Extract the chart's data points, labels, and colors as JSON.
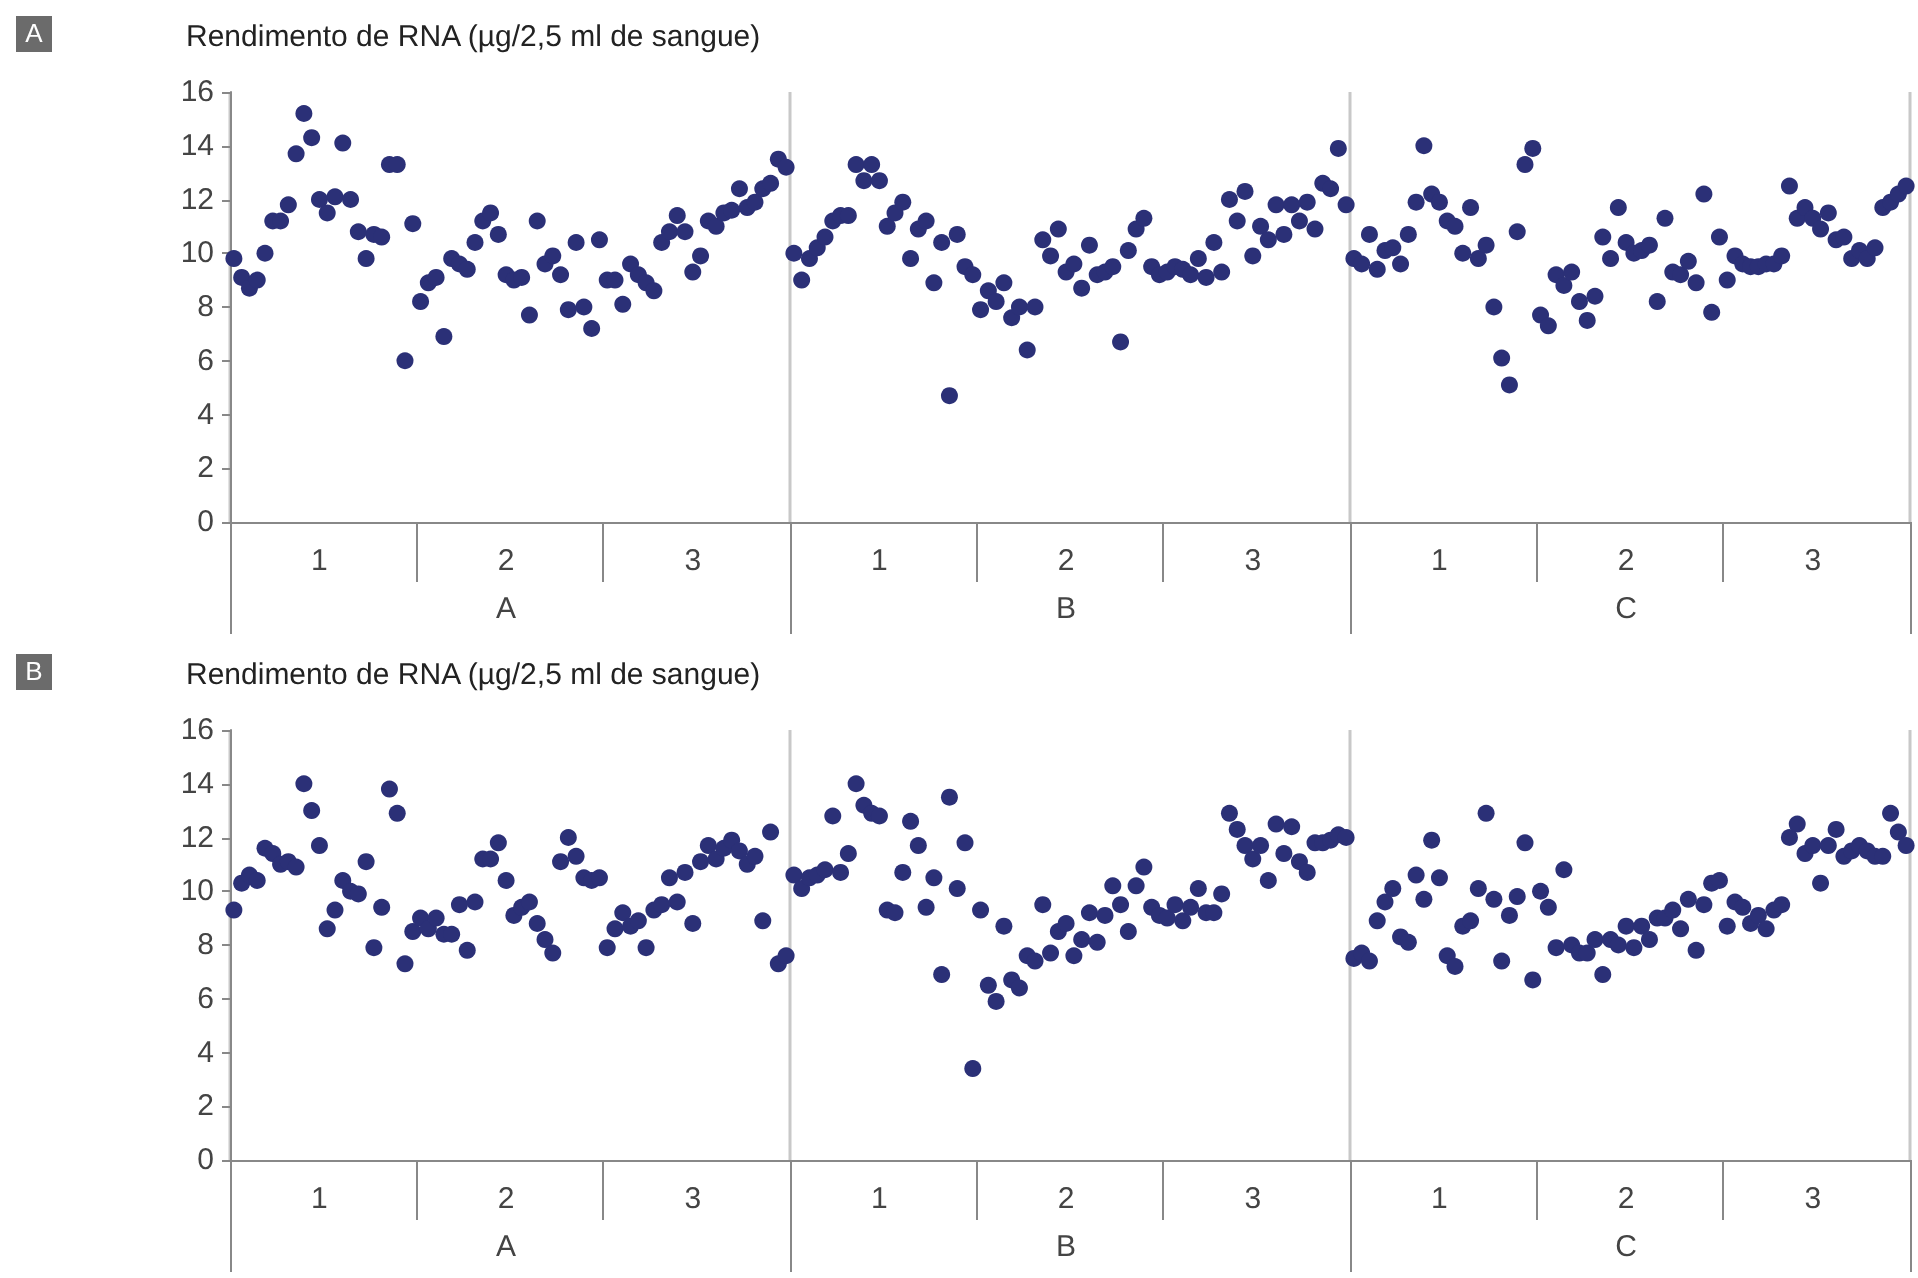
{
  "chart_data": [
    {
      "type": "scatter",
      "title": "Rendimento de RNA (µg/2,5 ml de sangue)",
      "annotations": [
        "A",
        "A",
        "B",
        "C"
      ],
      "color": "#2b3077",
      "marker": "circle",
      "grid": "x",
      "categories": [
        null,
        null,
        null,
        null,
        null,
        null,
        null,
        null,
        null,
        null,
        null,
        "1",
        null,
        null,
        null,
        null,
        null,
        null,
        null,
        null,
        null,
        null,
        null,
        null,
        null,
        null,
        null,
        null,
        null,
        null,
        null,
        null,
        null,
        null,
        null,
        "2",
        null,
        null,
        null,
        null,
        null,
        null,
        null,
        null,
        null,
        null,
        null,
        null,
        null,
        null,
        null,
        null,
        null,
        null,
        null,
        null,
        null,
        null,
        null,
        "3",
        null,
        null,
        null,
        null,
        null,
        null,
        null,
        null,
        null,
        null,
        null,
        null,
        null,
        null,
        null,
        null,
        null,
        null,
        null,
        null,
        null,
        null,
        null,
        "1",
        null,
        null,
        null,
        null,
        null,
        null,
        null,
        null,
        null,
        null,
        null,
        null,
        null,
        null,
        null,
        null,
        null,
        null,
        null,
        null,
        null,
        null,
        null,
        "2",
        null,
        null,
        null,
        null,
        null,
        null,
        null,
        null,
        null,
        null,
        null,
        null,
        null,
        null,
        null,
        null,
        null,
        null,
        null,
        null,
        null,
        null,
        null,
        "3",
        null,
        null,
        null,
        null,
        null,
        null,
        null,
        null,
        null,
        null,
        null,
        null,
        null,
        null,
        null,
        null,
        null,
        null,
        null,
        null,
        null,
        null,
        null,
        "1",
        null,
        null,
        null,
        null,
        null,
        null,
        null,
        null,
        null,
        null,
        null,
        null,
        null,
        null,
        null,
        null,
        null,
        null,
        null,
        null,
        null,
        null,
        null,
        "2",
        null,
        null,
        null,
        null,
        null,
        null,
        null,
        null,
        null,
        null,
        null,
        null,
        null,
        null,
        null,
        null,
        null,
        null,
        null,
        null,
        null,
        null,
        null,
        "3",
        null,
        null,
        null,
        null,
        null,
        null,
        null,
        null,
        null,
        null,
        null,
        null
      ],
      "values": [
        9.8,
        9.1,
        8.7,
        9.0,
        10.0,
        11.2,
        11.2,
        11.8,
        13.7,
        15.2,
        14.3,
        12.0,
        11.5,
        12.1,
        14.1,
        12.0,
        10.8,
        9.8,
        10.7,
        10.6,
        13.3,
        13.3,
        6.0,
        11.1,
        8.2,
        8.9,
        9.1,
        6.9,
        9.8,
        9.6,
        9.4,
        10.4,
        11.2,
        11.5,
        10.7,
        9.2,
        9.0,
        9.1,
        7.7,
        11.2,
        9.6,
        9.9,
        9.2,
        7.9,
        10.4,
        8.0,
        7.2,
        10.5,
        9.0,
        9.0,
        8.1,
        9.6,
        9.2,
        8.9,
        8.6,
        10.4,
        10.8,
        11.4,
        10.8,
        9.3,
        9.9,
        11.2,
        11.0,
        11.5,
        11.6,
        12.4,
        11.7,
        11.9,
        12.4,
        12.6,
        13.5,
        13.2,
        10.0,
        9.0,
        9.8,
        10.2,
        10.6,
        11.2,
        11.4,
        11.4,
        13.3,
        12.7,
        13.3,
        12.7,
        11.0,
        11.5,
        11.9,
        9.8,
        10.9,
        11.2,
        8.9,
        10.4,
        4.7,
        10.7,
        9.5,
        9.2,
        7.9,
        8.6,
        8.2,
        8.9,
        7.6,
        8.0,
        6.4,
        8.0,
        10.5,
        9.9,
        10.9,
        9.3,
        9.6,
        8.7,
        10.3,
        9.2,
        9.3,
        9.5,
        6.7,
        10.1,
        10.9,
        11.3,
        9.5,
        9.2,
        9.3,
        9.5,
        9.4,
        9.2,
        9.8,
        9.1,
        10.4,
        9.3,
        12.0,
        11.2,
        12.3,
        9.9,
        11.0,
        10.5,
        11.8,
        10.7,
        11.8,
        11.2,
        11.9,
        10.9,
        12.6,
        12.4,
        13.9,
        11.8,
        9.8,
        9.6,
        10.7,
        9.4,
        10.1,
        10.2,
        9.6,
        10.7,
        11.9,
        14.0,
        12.2,
        11.9,
        11.2,
        11.0,
        10.0,
        11.7,
        9.8,
        10.3,
        8.0,
        6.1,
        5.1,
        10.8,
        13.3,
        13.9,
        7.7,
        7.3,
        9.2,
        8.8,
        9.3,
        8.2,
        7.5,
        8.4,
        10.6,
        9.8,
        11.7,
        10.4,
        10.0,
        10.1,
        10.3,
        8.2,
        11.3,
        9.3,
        9.2,
        9.7,
        8.9,
        12.2,
        7.8,
        10.6,
        9.0,
        9.9,
        9.6,
        9.5,
        9.5,
        9.6,
        9.6,
        9.9,
        12.5,
        11.3,
        11.7,
        11.3,
        10.9,
        11.5,
        10.5,
        10.6,
        9.8,
        10.1,
        9.8,
        10.2,
        11.7,
        11.9,
        12.2,
        12.5
      ],
      "ylim": [
        0,
        16
      ],
      "yticks": [
        0,
        2,
        4,
        6,
        8,
        10,
        12,
        14,
        16
      ]
    },
    {
      "type": "scatter",
      "title": "Rendimento de RNA (µg/2,5 ml de sangue)",
      "annotations": [
        "B",
        "A",
        "B",
        "C"
      ],
      "color": "#2b3077",
      "marker": "circle",
      "grid": "x",
      "categories": [
        null,
        null,
        null,
        null,
        null,
        null,
        null,
        null,
        null,
        null,
        null,
        "1",
        null,
        null,
        null,
        null,
        null,
        null,
        null,
        null,
        null,
        null,
        null,
        null,
        null,
        null,
        null,
        null,
        null,
        null,
        null,
        null,
        null,
        null,
        null,
        "2",
        null,
        null,
        null,
        null,
        null,
        null,
        null,
        null,
        null,
        null,
        null,
        null,
        null,
        null,
        null,
        null,
        null,
        null,
        null,
        null,
        null,
        null,
        null,
        "3",
        null,
        null,
        null,
        null,
        null,
        null,
        null,
        null,
        null,
        null,
        null,
        null,
        null,
        null,
        null,
        null,
        null,
        null,
        null,
        null,
        null,
        null,
        null,
        "1",
        null,
        null,
        null,
        null,
        null,
        null,
        null,
        null,
        null,
        null,
        null,
        null,
        null,
        null,
        null,
        null,
        null,
        null,
        null,
        null,
        null,
        null,
        null,
        "2",
        null,
        null,
        null,
        null,
        null,
        null,
        null,
        null,
        null,
        null,
        null,
        null,
        null,
        null,
        null,
        null,
        null,
        null,
        null,
        null,
        null,
        null,
        null,
        "3",
        null,
        null,
        null,
        null,
        null,
        null,
        null,
        null,
        null,
        null,
        null,
        null,
        null,
        null,
        null,
        null,
        null,
        null,
        null,
        null,
        null,
        null,
        null,
        "1",
        null,
        null,
        null,
        null,
        null,
        null,
        null,
        null,
        null,
        null,
        null,
        null,
        null,
        null,
        null,
        null,
        null,
        null,
        null,
        null,
        null,
        null,
        null,
        "2",
        null,
        null,
        null,
        null,
        null,
        null,
        null,
        null,
        null,
        null,
        null,
        null,
        null,
        null,
        null,
        null,
        null,
        null,
        null,
        null,
        null,
        null,
        null,
        "3",
        null,
        null,
        null,
        null,
        null,
        null,
        null,
        null,
        null,
        null,
        null,
        null
      ],
      "values": [
        9.3,
        10.3,
        10.6,
        10.4,
        11.6,
        11.4,
        11.0,
        11.1,
        10.9,
        14.0,
        13.0,
        11.7,
        8.6,
        9.3,
        10.4,
        10.0,
        9.9,
        11.1,
        7.9,
        9.4,
        13.8,
        12.9,
        7.3,
        8.5,
        9.0,
        8.6,
        9.0,
        8.4,
        8.4,
        9.5,
        7.8,
        9.6,
        11.2,
        11.2,
        11.8,
        10.4,
        9.1,
        9.4,
        9.6,
        8.8,
        8.2,
        7.7,
        11.1,
        12.0,
        11.3,
        10.5,
        10.4,
        10.5,
        7.9,
        8.6,
        9.2,
        8.7,
        8.9,
        7.9,
        9.3,
        9.5,
        10.5,
        9.6,
        10.7,
        8.8,
        11.1,
        11.7,
        11.2,
        11.6,
        11.9,
        11.5,
        11.0,
        11.3,
        8.9,
        12.2,
        7.3,
        7.6,
        10.6,
        10.1,
        10.5,
        10.6,
        10.8,
        12.8,
        10.7,
        11.4,
        14.0,
        13.2,
        12.9,
        12.8,
        9.3,
        9.2,
        10.7,
        12.6,
        11.7,
        9.4,
        10.5,
        6.9,
        13.5,
        10.1,
        11.8,
        3.4,
        9.3,
        6.5,
        5.9,
        8.7,
        6.7,
        6.4,
        7.6,
        7.4,
        9.5,
        7.7,
        8.5,
        8.8,
        7.6,
        8.2,
        9.2,
        8.1,
        9.1,
        10.2,
        9.5,
        8.5,
        10.2,
        10.9,
        9.4,
        9.1,
        9.0,
        9.5,
        8.9,
        9.4,
        10.1,
        9.2,
        9.2,
        9.9,
        12.9,
        12.3,
        11.7,
        11.2,
        11.7,
        10.4,
        12.5,
        11.4,
        12.4,
        11.1,
        10.7,
        11.8,
        11.8,
        11.9,
        12.1,
        12.0,
        7.5,
        7.7,
        7.4,
        8.9,
        9.6,
        10.1,
        8.3,
        8.1,
        10.6,
        9.7,
        11.9,
        10.5,
        7.6,
        7.2,
        8.7,
        8.9,
        10.1,
        12.9,
        9.7,
        7.4,
        9.1,
        9.8,
        11.8,
        6.7,
        10.0,
        9.4,
        7.9,
        10.8,
        8.0,
        7.7,
        7.7,
        8.2,
        6.9,
        8.2,
        8.0,
        8.7,
        7.9,
        8.7,
        8.2,
        9.0,
        9.0,
        9.3,
        8.6,
        9.7,
        7.8,
        9.5,
        10.3,
        10.4,
        8.7,
        9.6,
        9.4,
        8.8,
        9.1,
        8.6,
        9.3,
        9.5,
        12.0,
        12.5,
        11.4,
        11.7,
        10.3,
        11.7,
        12.3,
        11.3,
        11.5,
        11.7,
        11.5,
        11.3,
        11.3,
        12.9,
        12.2,
        11.7
      ],
      "ylim": [
        0,
        16
      ],
      "yticks": [
        0,
        2,
        4,
        6,
        8,
        10,
        12,
        14,
        16
      ]
    }
  ]
}
